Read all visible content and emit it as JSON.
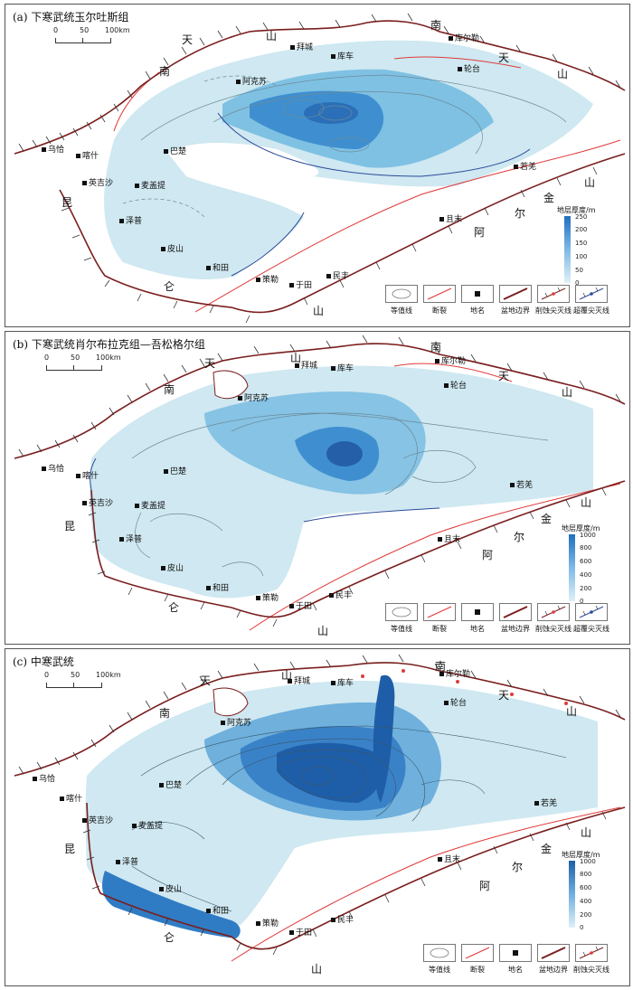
{
  "panels": [
    {
      "title": "(a) 下寒武统玉尔吐斯组",
      "scale_labels": [
        "0",
        "50",
        "100km"
      ],
      "colorbar": {
        "title": "地层厚度/m",
        "ticks": [
          "250",
          "200",
          "150",
          "100",
          "50",
          "0"
        ]
      }
    },
    {
      "title": "(b) 下寒武统肖尔布拉克组—吾松格尔组",
      "scale_labels": [
        "0",
        "50",
        "100km"
      ],
      "colorbar": {
        "title": "地层厚度/m",
        "ticks": [
          "1000",
          "800",
          "600",
          "400",
          "200",
          "0"
        ]
      }
    },
    {
      "title": "(c) 中寒武统",
      "scale_labels": [
        "0",
        "50",
        "100km"
      ],
      "colorbar": {
        "title": "地层厚度/m",
        "ticks": [
          "1000",
          "800",
          "600",
          "400",
          "200",
          "0"
        ]
      }
    }
  ],
  "mountains": {
    "tian": "天",
    "shan": "山",
    "nan": "南",
    "kun": "昆",
    "lun": "仑",
    "a": "阿",
    "er": "尔",
    "jin": "金"
  },
  "cities": {
    "baicheng": "拜城",
    "kuche": "库车",
    "kuerle": "库尔勒",
    "luntai": "轮台",
    "akesu": "阿克苏",
    "wuqia": "乌恰",
    "kashi": "喀什",
    "bachu": "巴楚",
    "yingjisha": "英吉沙",
    "maigaiti": "麦盖提",
    "zepu": "泽普",
    "pishan": "皮山",
    "hetian": "和田",
    "cele": "策勒",
    "yutian": "于田",
    "minfeng": "民丰",
    "ruoqiang": "若羌",
    "qiemo": "且末"
  },
  "legend": {
    "isoline": "等值线",
    "fault": "断裂",
    "place": "地名",
    "basin_boundary": "盆地边界",
    "erosion_pinchout": "削蚀尖灭线",
    "overlap_pinchout": "超覆尖灭线"
  },
  "colors": {
    "light_fill": "#cfe8f1",
    "mid_fill": "#7fc1e3",
    "deep_fill": "#3f8fd0",
    "darkest_fill": "#1e5ea8",
    "boundary": "#7a1e1e",
    "fault": "#e03a3a"
  }
}
